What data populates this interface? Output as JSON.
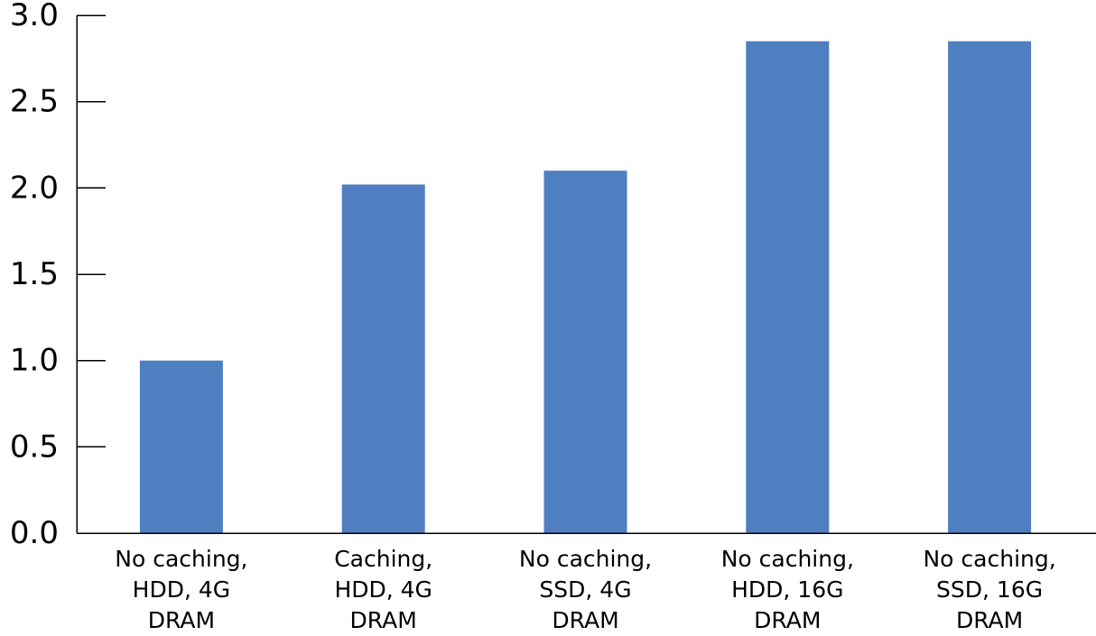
{
  "chart_data": {
    "type": "bar",
    "title": "",
    "xlabel": "",
    "ylabel": "",
    "categories": [
      [
        "No caching,",
        "HDD, 4G",
        "DRAM"
      ],
      [
        "Caching,",
        "HDD, 4G",
        "DRAM"
      ],
      [
        "No caching,",
        "SSD, 4G",
        "DRAM"
      ],
      [
        "No caching,",
        "HDD, 16G",
        "DRAM"
      ],
      [
        "No caching,",
        "SSD, 16G",
        "DRAM"
      ]
    ],
    "values": [
      1.0,
      2.02,
      2.1,
      2.85,
      2.85
    ],
    "ylim": [
      0,
      3.0
    ],
    "yticks": [
      "0.0",
      "0.5",
      "1.0",
      "1.5",
      "2.0",
      "2.5",
      "3.0"
    ],
    "grid": false,
    "bar_color": "#4f7ec1"
  }
}
